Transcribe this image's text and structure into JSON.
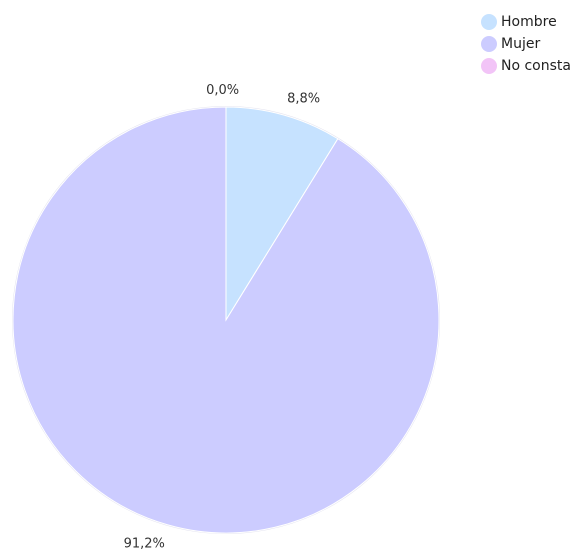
{
  "chart_data": {
    "type": "pie",
    "title": "",
    "legend_position": "top-right",
    "slices": [
      {
        "label": "Hombre",
        "value": 8.8,
        "value_label": "8,8%",
        "color": "#c6e2ff"
      },
      {
        "label": "Mujer",
        "value": 91.2,
        "value_label": "91,2%",
        "color": "#ccccff"
      },
      {
        "label": "No consta",
        "value": 0.0,
        "value_label": "0,0%",
        "color": "#f2c4f7"
      }
    ]
  }
}
